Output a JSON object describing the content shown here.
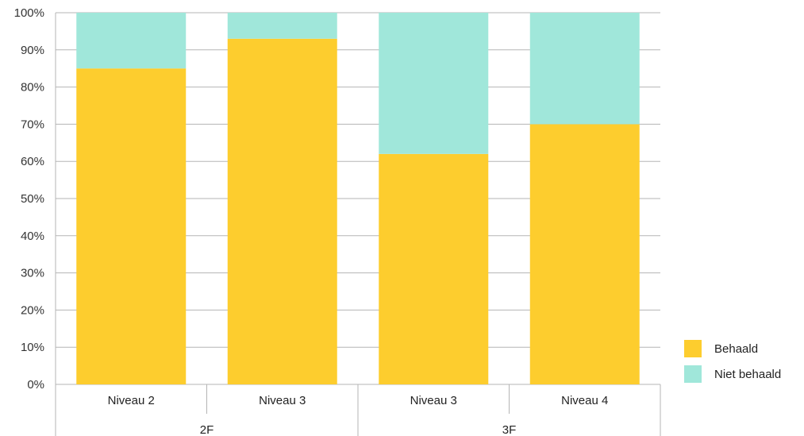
{
  "chart_data": {
    "type": "bar",
    "stacked": true,
    "yticks": [
      "0%",
      "10%",
      "20%",
      "30%",
      "40%",
      "50%",
      "60%",
      "70%",
      "80%",
      "90%",
      "100%"
    ],
    "ylim": [
      0,
      100
    ],
    "grid": true,
    "legend_position": "bottom-right",
    "categories": [
      "Niveau 2",
      "Niveau 3",
      "Niveau 3",
      "Niveau 4"
    ],
    "groups": [
      {
        "label": "2F",
        "categories": [
          0,
          1
        ]
      },
      {
        "label": "3F",
        "categories": [
          2,
          3
        ]
      }
    ],
    "series": [
      {
        "name": "Behaald",
        "color": "#FDCD2E",
        "values": [
          85,
          93,
          62,
          70
        ]
      },
      {
        "name": "Niet behaald",
        "color": "#A0E7DA",
        "values": [
          15,
          7,
          38,
          30
        ]
      }
    ]
  }
}
